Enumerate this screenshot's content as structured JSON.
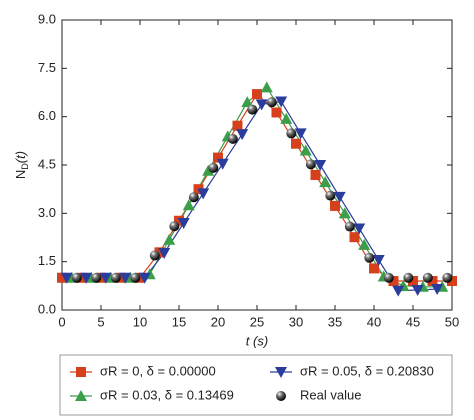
{
  "chart_data": {
    "type": "line",
    "x_label": "t (s)",
    "y_label": "N",
    "y_label_sub": "D",
    "y_label_suffix": "(t)",
    "xlim": [
      0,
      50
    ],
    "ylim": [
      0,
      9
    ],
    "xticks": [
      0,
      5,
      10,
      15,
      20,
      25,
      30,
      35,
      40,
      45,
      50
    ],
    "yticks": [
      {
        "value": 0,
        "label": "0.0"
      },
      {
        "value": 1.5,
        "label": "1.5"
      },
      {
        "value": 3,
        "label": "3.0"
      },
      {
        "value": 4.5,
        "label": "4.5"
      },
      {
        "value": 6,
        "label": "6.0"
      },
      {
        "value": 7.5,
        "label": "7.5"
      },
      {
        "value": 9,
        "label": "9.0"
      }
    ],
    "series": [
      {
        "name": "σR = 0, δ = 0.00000",
        "color": "#d6401d",
        "marker": "square",
        "show_line": true,
        "x": [
          0,
          2.5,
          5,
          7.5,
          10,
          12.5,
          15,
          17.5,
          20,
          22.5,
          25,
          27.5,
          30,
          32.5,
          35,
          37.5,
          40,
          42.5,
          45,
          47.5,
          50
        ],
        "values": [
          1.0,
          1.0,
          1.0,
          1.0,
          1.0,
          1.79,
          2.77,
          3.75,
          4.73,
          5.72,
          6.7,
          6.13,
          5.16,
          4.19,
          3.23,
          2.26,
          1.29,
          0.9,
          0.9,
          0.9,
          0.9
        ]
      },
      {
        "name": "σR = 0.03, δ = 0.13469",
        "color": "#3a9f48",
        "marker": "triangle-up",
        "show_line": true,
        "x": [
          1.25,
          3.75,
          6.25,
          8.75,
          11.25,
          13.75,
          16.25,
          18.75,
          21.25,
          23.75,
          26.25,
          28.75,
          31.25,
          33.75,
          36.25,
          38.75,
          41.25,
          43.75,
          46.25,
          48.75
        ],
        "values": [
          1.0,
          1.0,
          1.0,
          1.0,
          1.11,
          2.18,
          3.25,
          4.32,
          5.39,
          6.45,
          6.91,
          5.93,
          4.95,
          3.97,
          3.0,
          2.02,
          1.04,
          0.75,
          0.72,
          0.72
        ]
      },
      {
        "name": "σR = 0.05, δ = 0.20830",
        "color": "#2a3c9c",
        "marker": "triangle-down",
        "show_line": true,
        "x": [
          0.6,
          3.1,
          5.6,
          8.1,
          10.6,
          13.1,
          15.6,
          18.1,
          20.6,
          23.1,
          25.6,
          28.1,
          30.6,
          33.1,
          35.6,
          38.1,
          40.6,
          43.1,
          45.6,
          48.1
        ],
        "values": [
          1.0,
          1.0,
          1.0,
          1.0,
          1.0,
          1.77,
          2.7,
          3.62,
          4.54,
          5.46,
          6.38,
          6.47,
          5.48,
          4.5,
          3.51,
          2.53,
          1.55,
          0.6,
          0.62,
          0.65
        ]
      },
      {
        "name": "Real value",
        "color": "#111111",
        "marker": "sphere",
        "show_line": false,
        "x": [
          1.9,
          4.4,
          6.9,
          9.4,
          11.9,
          14.4,
          16.9,
          19.4,
          21.9,
          24.4,
          26.9,
          29.4,
          31.9,
          34.4,
          36.9,
          39.4,
          41.9,
          44.4,
          46.9,
          49.4
        ],
        "values": [
          1.0,
          1.0,
          1.0,
          1.0,
          1.69,
          2.6,
          3.5,
          4.41,
          5.31,
          6.22,
          6.45,
          5.48,
          4.52,
          3.55,
          2.59,
          1.62,
          1.0,
          1.0,
          1.0,
          1.0
        ]
      }
    ]
  }
}
